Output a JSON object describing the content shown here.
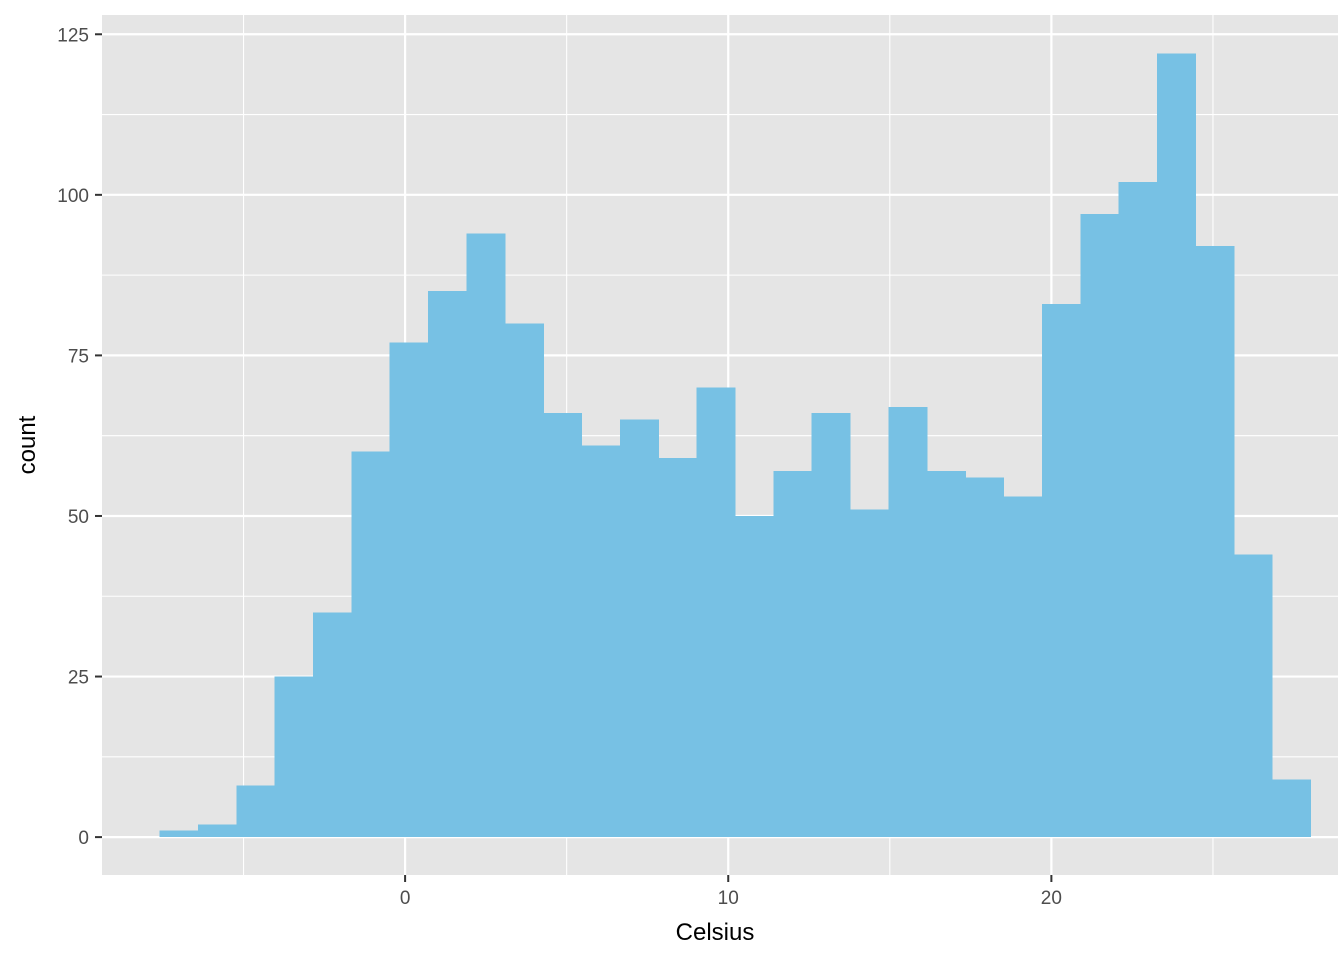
{
  "chart_data": {
    "type": "bar",
    "subtype": "histogram",
    "xlabel": "Celsius",
    "ylabel": "count",
    "xlim": [
      -9.38,
      28.87
    ],
    "ylim": [
      -5.9,
      128.0
    ],
    "x_ticks": [
      0,
      10,
      20
    ],
    "y_ticks": [
      0,
      25,
      50,
      75,
      100,
      125
    ],
    "grid": true,
    "legend": "none",
    "bin_width": 1.1873,
    "bins": [
      {
        "start": -7.6,
        "end": -6.413,
        "count": 1
      },
      {
        "start": -6.413,
        "end": -5.225,
        "count": 2
      },
      {
        "start": -5.225,
        "end": -4.038,
        "count": 8
      },
      {
        "start": -4.038,
        "end": -2.851,
        "count": 25
      },
      {
        "start": -2.851,
        "end": -1.663,
        "count": 35
      },
      {
        "start": -1.663,
        "end": -0.476,
        "count": 60
      },
      {
        "start": -0.476,
        "end": 0.711,
        "count": 77
      },
      {
        "start": 0.711,
        "end": 1.899,
        "count": 85
      },
      {
        "start": 1.899,
        "end": 3.086,
        "count": 94
      },
      {
        "start": 3.086,
        "end": 4.273,
        "count": 80
      },
      {
        "start": 4.273,
        "end": 5.46,
        "count": 66
      },
      {
        "start": 5.46,
        "end": 6.648,
        "count": 61
      },
      {
        "start": 6.648,
        "end": 7.835,
        "count": 65
      },
      {
        "start": 7.835,
        "end": 9.022,
        "count": 59
      },
      {
        "start": 9.022,
        "end": 10.21,
        "count": 70
      },
      {
        "start": 10.21,
        "end": 11.397,
        "count": 50
      },
      {
        "start": 11.397,
        "end": 12.584,
        "count": 57
      },
      {
        "start": 12.584,
        "end": 13.772,
        "count": 66
      },
      {
        "start": 13.772,
        "end": 14.959,
        "count": 51
      },
      {
        "start": 14.959,
        "end": 16.146,
        "count": 67
      },
      {
        "start": 16.146,
        "end": 17.334,
        "count": 57
      },
      {
        "start": 17.334,
        "end": 18.521,
        "count": 56
      },
      {
        "start": 18.521,
        "end": 19.708,
        "count": 53
      },
      {
        "start": 19.708,
        "end": 20.896,
        "count": 83
      },
      {
        "start": 20.896,
        "end": 22.083,
        "count": 97
      },
      {
        "start": 22.083,
        "end": 23.27,
        "count": 102
      },
      {
        "start": 23.27,
        "end": 24.458,
        "count": 122
      },
      {
        "start": 24.458,
        "end": 25.645,
        "count": 92
      },
      {
        "start": 25.645,
        "end": 26.832,
        "count": 44
      },
      {
        "start": 26.832,
        "end": 28.02,
        "count": 9
      }
    ]
  },
  "colors": {
    "panel_background": "#e5e5e5",
    "grid_major": "#ffffff",
    "bar_fill": "#77c1e4",
    "tick_text": "#4d4d4d",
    "axis_title": "#000000"
  }
}
